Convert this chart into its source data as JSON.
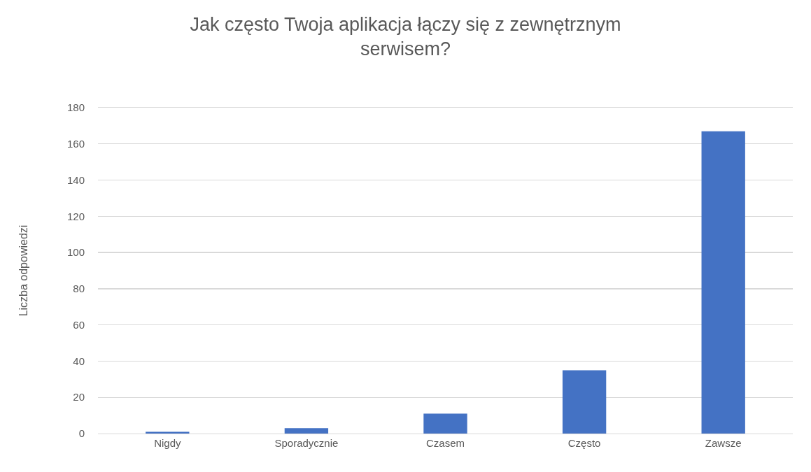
{
  "chart_data": {
    "type": "bar",
    "title": "Jak często Twoja aplikacja łączy się z zewnętrznym serwisem?",
    "ylabel": "Liczba odpowiedzi",
    "categories": [
      "Nigdy",
      "Sporadycznie",
      "Czasem",
      "Często",
      "Zawsze"
    ],
    "values": [
      1,
      3,
      11,
      35,
      167
    ],
    "color": "#4472c4",
    "ylim": [
      0,
      180
    ],
    "yticks": [
      0,
      20,
      40,
      60,
      80,
      100,
      120,
      140,
      160,
      180
    ],
    "grid": "y"
  }
}
